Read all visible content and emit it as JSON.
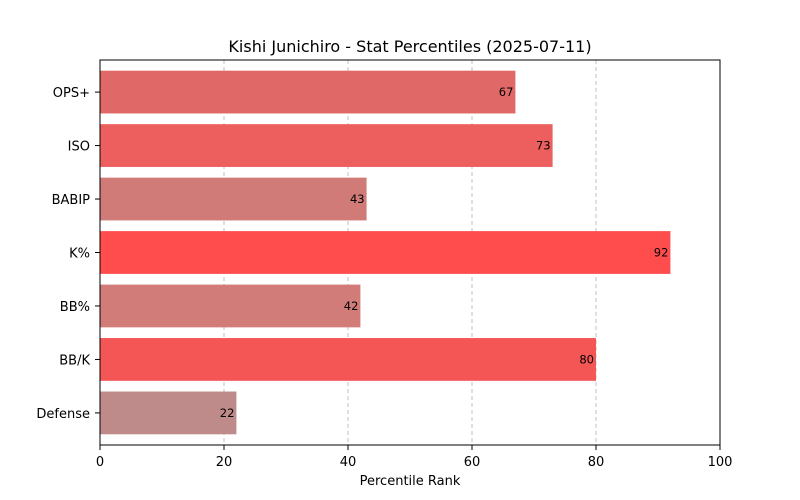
{
  "chart_data": {
    "type": "bar",
    "orientation": "horizontal",
    "title": "Kishi Junichiro - Stat Percentiles (2025-07-11)",
    "xlabel": "Percentile Rank",
    "ylabel": "",
    "xlim": [
      0,
      100
    ],
    "xticks": [
      0,
      20,
      40,
      60,
      80,
      100
    ],
    "grid": "x-dashed",
    "categories": [
      "OPS+",
      "ISO",
      "BABIP",
      "K%",
      "BB%",
      "BB/K",
      "Defense"
    ],
    "values": [
      67,
      73,
      43,
      92,
      42,
      80,
      22
    ],
    "colors": [
      "#e06968",
      "#ec5f5e",
      "#d07b78",
      "#ff4d4d",
      "#d17c78",
      "#f45656",
      "#bf8b8a"
    ]
  }
}
